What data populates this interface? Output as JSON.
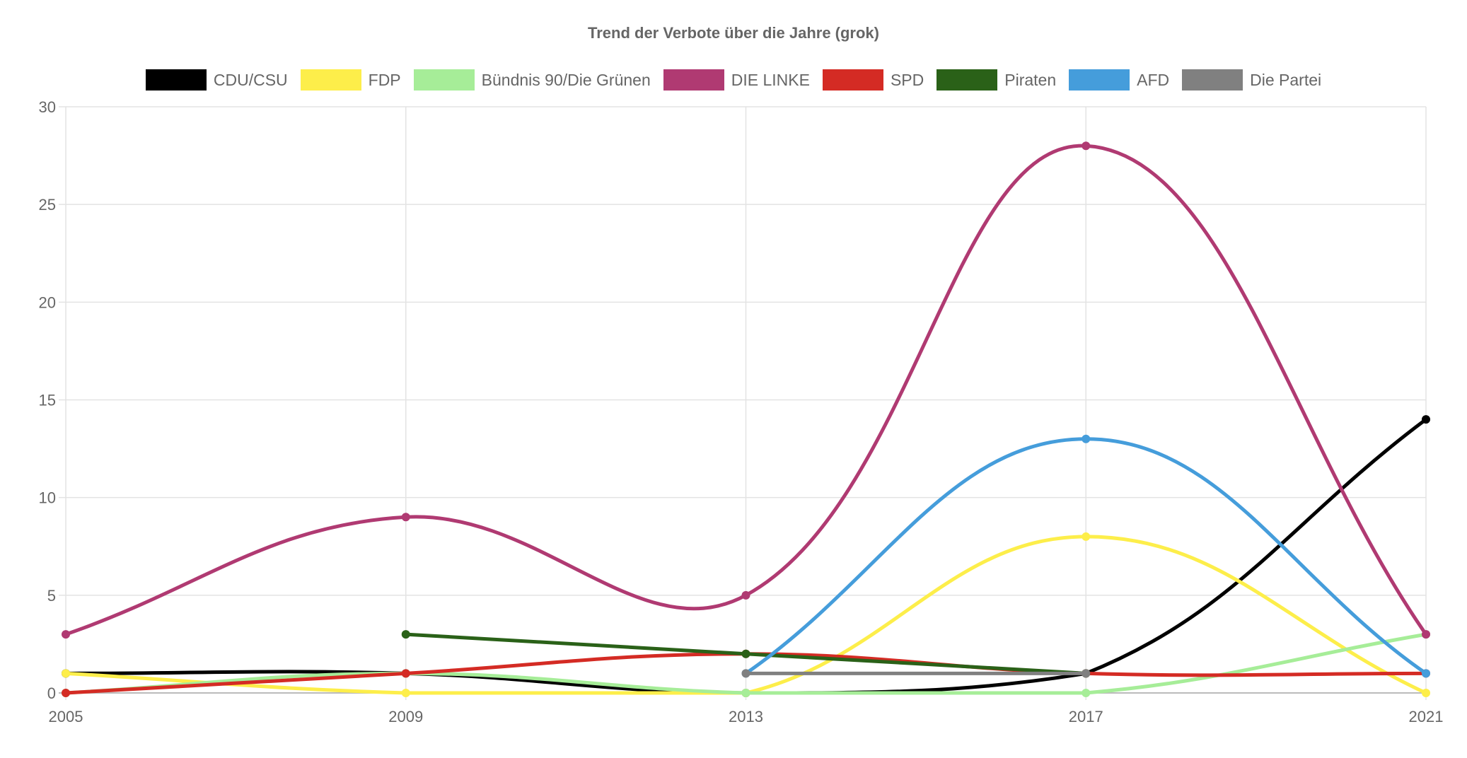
{
  "chart_data": {
    "type": "line",
    "title": "Trend der Verbote über die Jahre (grok)",
    "x": [
      "2005",
      "2009",
      "2013",
      "2017",
      "2021"
    ],
    "ylim": [
      0,
      30
    ],
    "yticks": [
      "0",
      "5",
      "10",
      "15",
      "20",
      "25",
      "30"
    ],
    "grid": true,
    "legend_position": "top",
    "series": [
      {
        "name": "CDU/CSU",
        "color": "#000000",
        "values": [
          1,
          1,
          0,
          1,
          14
        ]
      },
      {
        "name": "FDP",
        "color": "#fdee4a",
        "values": [
          1,
          0,
          0,
          8,
          0
        ]
      },
      {
        "name": "Bündnis 90/Die Grünen",
        "color": "#a6ed98",
        "values": [
          0,
          1,
          0,
          0,
          3
        ]
      },
      {
        "name": "DIE LINKE",
        "color": "#b03a72",
        "values": [
          3,
          9,
          5,
          28,
          3
        ]
      },
      {
        "name": "SPD",
        "color": "#d42b24",
        "values": [
          0,
          1,
          2,
          1,
          1
        ]
      },
      {
        "name": "Piraten",
        "color": "#2a6118",
        "values": [
          null,
          3,
          2,
          1,
          null
        ]
      },
      {
        "name": "AFD",
        "color": "#459ddb",
        "values": [
          null,
          null,
          1,
          13,
          1
        ]
      },
      {
        "name": "Die Partei",
        "color": "#808080",
        "values": [
          null,
          null,
          1,
          1,
          null
        ]
      }
    ]
  }
}
